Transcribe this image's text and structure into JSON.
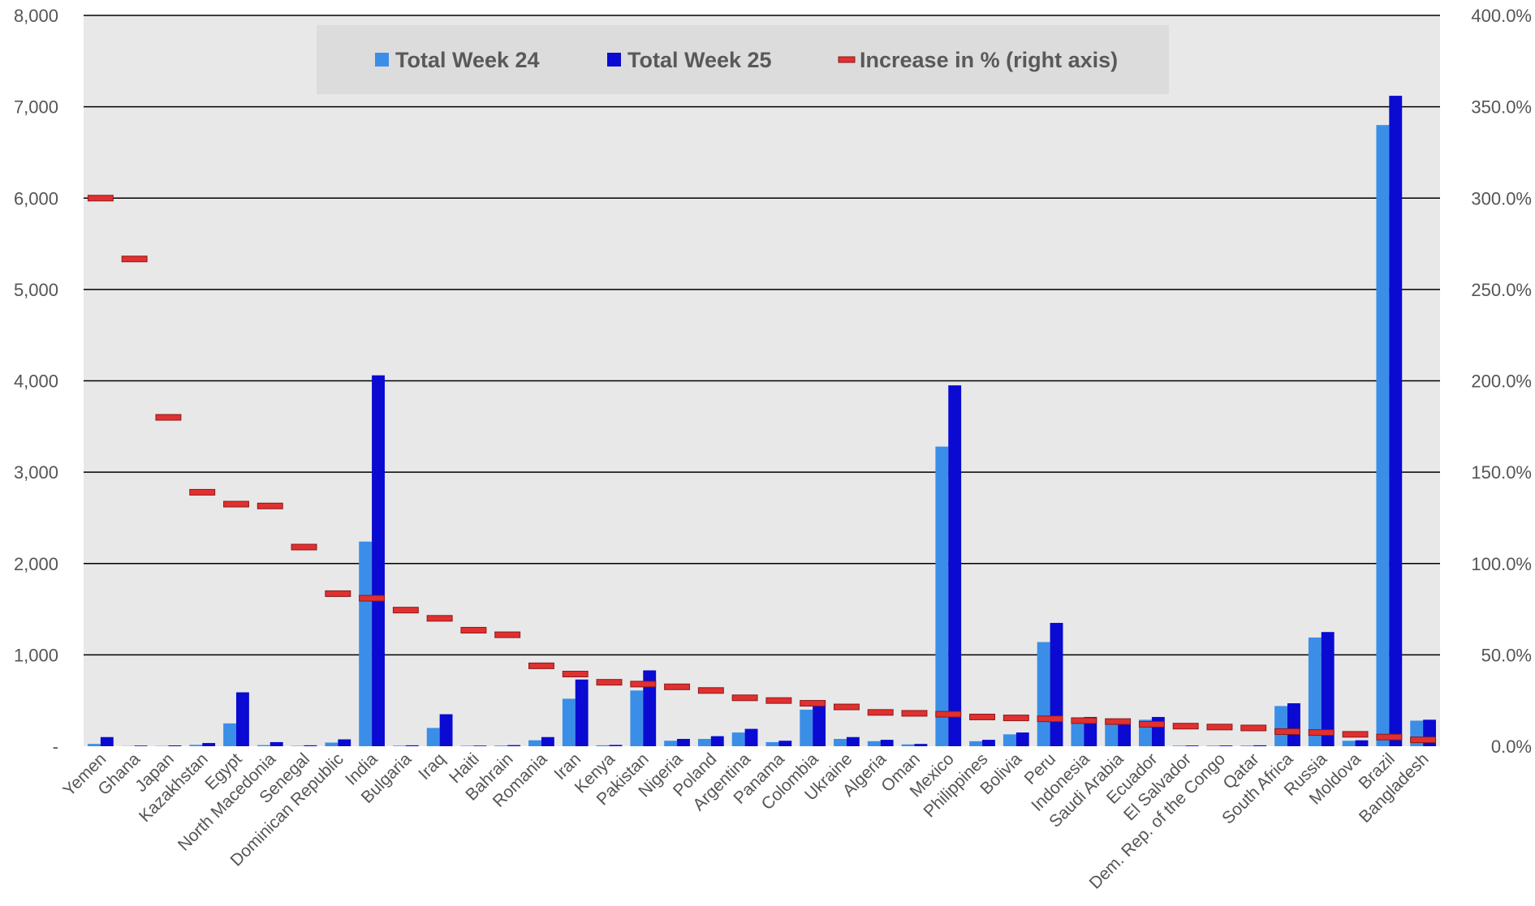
{
  "chart_data": {
    "type": "bar",
    "categories": [
      "Yemen",
      "Ghana",
      "Japan",
      "Kazakhstan",
      "Egypt",
      "North Macedonia",
      "Senegal",
      "Dominican Republic",
      "India",
      "Bulgaria",
      "Iraq",
      "Haiti",
      "Bahrain",
      "Romania",
      "Iran",
      "Kenya",
      "Pakistan",
      "Nigeria",
      "Poland",
      "Argentina",
      "Panama",
      "Colombia",
      "Ukraine",
      "Algeria",
      "Oman",
      "Mexico",
      "Philippines",
      "Bolivia",
      "Peru",
      "Indonesia",
      "Saudi Arabia",
      "Ecuador",
      "El Salvador",
      "Dem. Rep. of the Congo",
      "Qatar",
      "South Africa",
      "Russia",
      "Moldova",
      "Brazil",
      "Bangladesh"
    ],
    "series": [
      {
        "name": "Total Week 24",
        "axis": "left",
        "color": "#3b8ee8",
        "values": [
          25,
          2,
          3,
          15,
          250,
          12,
          4,
          40,
          2240,
          6,
          200,
          5,
          7,
          65,
          520,
          10,
          610,
          60,
          80,
          150,
          45,
          400,
          80,
          55,
          20,
          3280,
          55,
          130,
          1140,
          270,
          250,
          290,
          6,
          6,
          7,
          440,
          1190,
          60,
          6800,
          280
        ]
      },
      {
        "name": "Total Week 25",
        "axis": "left",
        "color": "#0a0ad2",
        "values": [
          100,
          7,
          9,
          35,
          590,
          45,
          10,
          75,
          4060,
          10,
          350,
          7,
          12,
          100,
          730,
          14,
          830,
          80,
          110,
          190,
          60,
          490,
          100,
          70,
          25,
          3950,
          70,
          150,
          1350,
          320,
          290,
          320,
          8,
          8,
          10,
          470,
          1250,
          65,
          7120,
          290
        ]
      },
      {
        "name": "Increase in % (right axis)",
        "axis": "right",
        "type": "marker",
        "color": "#e03030",
        "values": [
          300.0,
          266.7,
          180.0,
          139.0,
          132.5,
          131.5,
          109.0,
          83.5,
          81.0,
          74.5,
          70.0,
          63.5,
          61.0,
          44.0,
          39.5,
          35.0,
          34.0,
          32.5,
          30.5,
          26.5,
          25.0,
          23.5,
          21.5,
          18.5,
          18.0,
          17.5,
          16.0,
          15.5,
          15.0,
          14.0,
          13.5,
          12.0,
          11.0,
          10.5,
          10.0,
          8.0,
          7.5,
          6.5,
          5.0,
          3.5
        ]
      }
    ],
    "left_axis": {
      "min": 0,
      "max": 8000,
      "ticks": [
        "-",
        "1,000",
        "2,000",
        "3,000",
        "4,000",
        "5,000",
        "6,000",
        "7,000",
        "8,000"
      ]
    },
    "right_axis": {
      "min": 0,
      "max": 400,
      "ticks": [
        "0.0%",
        "50.0%",
        "100.0%",
        "150.0%",
        "200.0%",
        "250.0%",
        "300.0%",
        "350.0%",
        "400.0%"
      ]
    },
    "grid": true,
    "legend_position": "top-center",
    "plot_background": "#e8e8e8",
    "gridline_color": "#000000"
  }
}
